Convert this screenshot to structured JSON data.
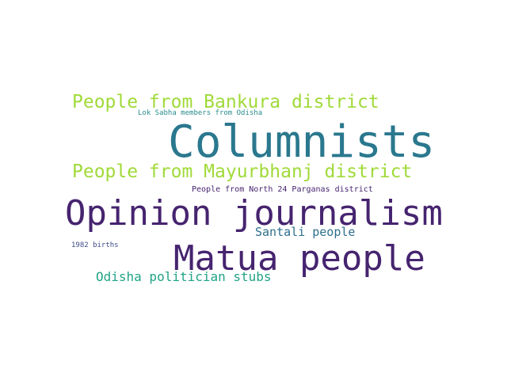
{
  "words": [
    {
      "text": "Columnists",
      "color": "#2a788e"
    },
    {
      "text": "Opinion journalism",
      "color": "#46246f"
    },
    {
      "text": "Matua people",
      "color": "#46246f"
    },
    {
      "text": "People from Bankura district",
      "color": "#a0da39"
    },
    {
      "text": "People from Mayurbhanj district",
      "color": "#a0da39"
    },
    {
      "text": "Santali people",
      "color": "#2e6f8e"
    },
    {
      "text": "Odisha politician stubs",
      "color": "#20a386"
    },
    {
      "text": "Lok Sabha members from Odisha",
      "color": "#2a8c8c"
    },
    {
      "text": "People from North 24 Parganas district",
      "color": "#46246f"
    },
    {
      "text": "1982 births",
      "color": "#3e4a89"
    }
  ]
}
